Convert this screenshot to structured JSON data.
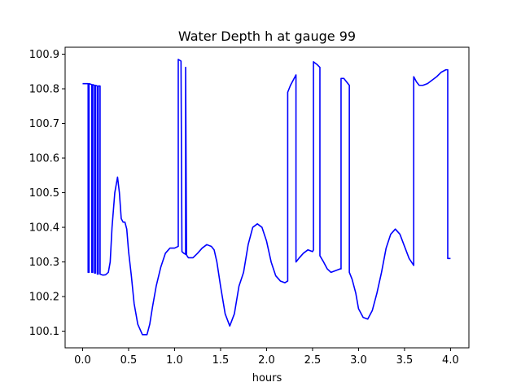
{
  "chart_data": {
    "type": "line",
    "title": "Water Depth h at gauge 99",
    "xlabel": "hours",
    "ylabel": "",
    "xlim": [
      -0.19,
      4.2
    ],
    "ylim": [
      100.052,
      100.92
    ],
    "xticks": [
      0.0,
      0.5,
      1.0,
      1.5,
      2.0,
      2.5,
      3.0,
      3.5,
      4.0
    ],
    "xtick_labels": [
      "0.0",
      "0.5",
      "1.0",
      "1.5",
      "2.0",
      "2.5",
      "3.0",
      "3.5",
      "4.0"
    ],
    "yticks": [
      100.1,
      100.2,
      100.3,
      100.4,
      100.5,
      100.6,
      100.7,
      100.8,
      100.9
    ],
    "ytick_labels": [
      "100.1",
      "100.2",
      "100.3",
      "100.4",
      "100.5",
      "100.6",
      "100.7",
      "100.8",
      "100.9"
    ],
    "grid": false,
    "legend": "none",
    "series": [
      {
        "name": "",
        "color": "#0000ff",
        "x": [
          0.0,
          0.06,
          0.06,
          0.07,
          0.07,
          0.1,
          0.1,
          0.11,
          0.11,
          0.13,
          0.13,
          0.14,
          0.14,
          0.16,
          0.16,
          0.17,
          0.17,
          0.19,
          0.19,
          0.22,
          0.25,
          0.28,
          0.3,
          0.32,
          0.35,
          0.38,
          0.4,
          0.42,
          0.44,
          0.46,
          0.48,
          0.5,
          0.53,
          0.56,
          0.6,
          0.65,
          0.7,
          0.73,
          0.76,
          0.8,
          0.85,
          0.9,
          0.95,
          1.0,
          1.04,
          1.04,
          1.07,
          1.08,
          1.1,
          1.12,
          1.12,
          1.13,
          1.15,
          1.2,
          1.25,
          1.3,
          1.35,
          1.4,
          1.43,
          1.46,
          1.5,
          1.55,
          1.6,
          1.65,
          1.7,
          1.75,
          1.8,
          1.85,
          1.9,
          1.95,
          2.0,
          2.05,
          2.1,
          2.15,
          2.2,
          2.23,
          2.23,
          2.26,
          2.32,
          2.32,
          2.35,
          2.4,
          2.45,
          2.5,
          2.51,
          2.51,
          2.55,
          2.58,
          2.58,
          2.62,
          2.66,
          2.7,
          2.75,
          2.8,
          2.81,
          2.81,
          2.84,
          2.87,
          2.9,
          2.9,
          2.93,
          2.97,
          3.0,
          3.05,
          3.1,
          3.15,
          3.2,
          3.25,
          3.3,
          3.35,
          3.4,
          3.45,
          3.5,
          3.55,
          3.6,
          3.6,
          3.63,
          3.66,
          3.7,
          3.75,
          3.8,
          3.85,
          3.9,
          3.95,
          3.97,
          3.97,
          4.0
        ],
        "y": [
          100.815,
          100.815,
          100.27,
          100.27,
          100.815,
          100.812,
          100.27,
          100.27,
          100.812,
          100.81,
          100.268,
          100.268,
          100.81,
          100.808,
          100.265,
          100.265,
          100.808,
          100.808,
          100.265,
          100.262,
          100.263,
          100.27,
          100.3,
          100.4,
          100.5,
          100.545,
          100.5,
          100.425,
          100.415,
          100.415,
          100.395,
          100.33,
          100.26,
          100.18,
          100.12,
          100.09,
          100.09,
          100.12,
          100.17,
          100.23,
          100.285,
          100.325,
          100.34,
          100.34,
          100.345,
          100.885,
          100.88,
          100.33,
          100.325,
          100.322,
          100.862,
          100.32,
          100.312,
          100.312,
          100.325,
          100.34,
          100.35,
          100.345,
          100.335,
          100.3,
          100.23,
          100.15,
          100.115,
          100.15,
          100.23,
          100.27,
          100.35,
          100.4,
          100.41,
          100.4,
          100.36,
          100.3,
          100.26,
          100.245,
          100.24,
          100.245,
          100.79,
          100.81,
          100.84,
          100.3,
          100.31,
          100.325,
          100.335,
          100.33,
          100.335,
          100.878,
          100.87,
          100.862,
          100.318,
          100.3,
          100.28,
          100.27,
          100.275,
          100.28,
          100.28,
          100.83,
          100.83,
          100.82,
          100.81,
          100.27,
          100.25,
          100.21,
          100.165,
          100.14,
          100.135,
          100.16,
          100.21,
          100.27,
          100.34,
          100.38,
          100.395,
          100.38,
          100.345,
          100.31,
          100.29,
          100.835,
          100.82,
          100.81,
          100.81,
          100.815,
          100.825,
          100.835,
          100.848,
          100.855,
          100.855,
          100.31,
          100.31
        ]
      }
    ]
  }
}
